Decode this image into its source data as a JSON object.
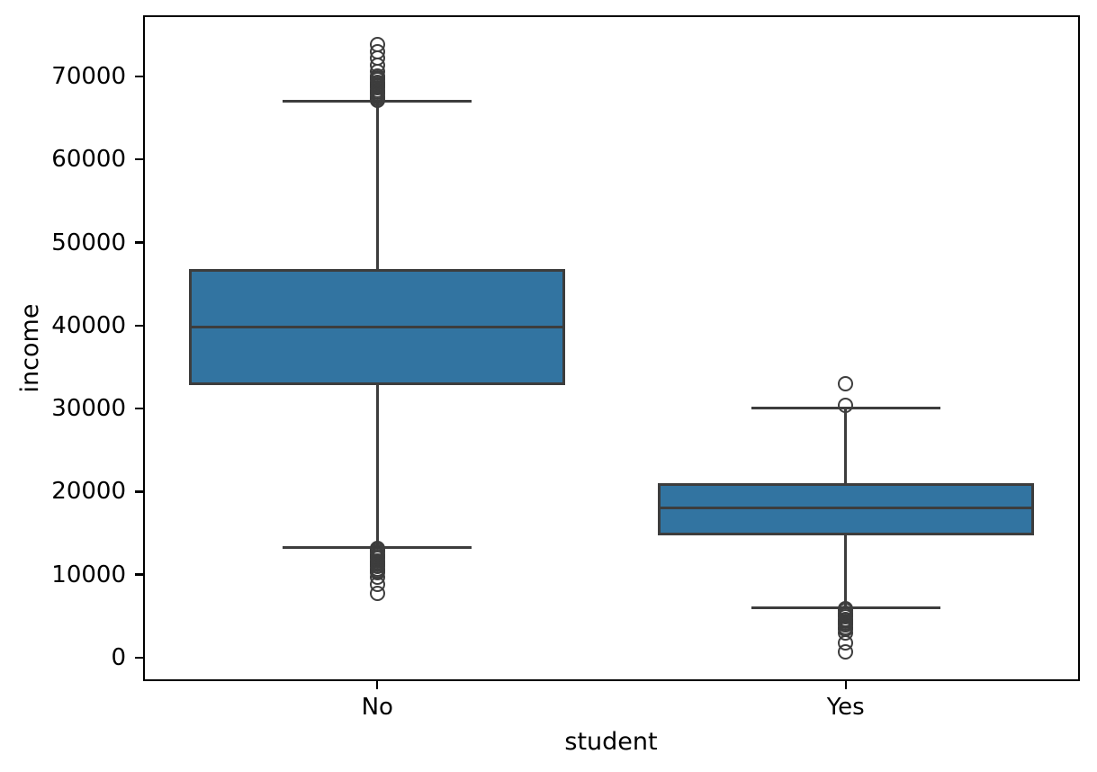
{
  "chart_data": {
    "type": "boxplot",
    "title": "",
    "xlabel": "student",
    "ylabel": "income",
    "categories": [
      "No",
      "Yes"
    ],
    "yticks": [
      0,
      10000,
      20000,
      30000,
      40000,
      50000,
      60000,
      70000
    ],
    "ylim": [
      -2820,
      77370
    ],
    "grid": false,
    "legend": "none",
    "colors": {
      "box_fill": "#3274a1",
      "box_line": "#3d3d3d",
      "spine": "#000000",
      "text": "#000000"
    },
    "boxes": [
      {
        "category": "No",
        "q1": 32800,
        "median": 39800,
        "q3": 46800,
        "whisker_low": 13300,
        "whisker_high": 67000,
        "outliers_high": [
          67100,
          67350,
          67600,
          67850,
          68100,
          68350,
          68600,
          68850,
          69100,
          69350,
          69600,
          69850,
          70100,
          70600,
          71400,
          72200,
          73000,
          73800
        ],
        "outliers_low": [
          13200,
          12950,
          12700,
          12450,
          12200,
          11950,
          11700,
          11450,
          11200,
          10950,
          10700,
          10450,
          10200,
          9700,
          8800,
          7700
        ]
      },
      {
        "category": "Yes",
        "q1": 14700,
        "median": 18000,
        "q3": 21000,
        "whisker_low": 6000,
        "whisker_high": 30050,
        "outliers_high": [
          30400,
          33000
        ],
        "outliers_low": [
          5900,
          5650,
          5400,
          5150,
          4900,
          4650,
          4400,
          4150,
          3900,
          3650,
          3400,
          3000,
          1750,
          650
        ]
      }
    ]
  }
}
